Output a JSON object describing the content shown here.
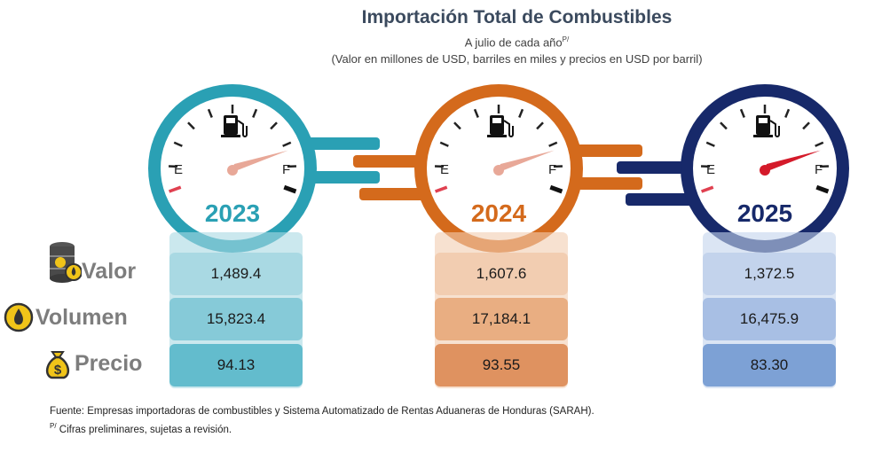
{
  "title": "Importación Total de Combustibles",
  "subtitle_line1": "A julio de cada año",
  "subtitle_sup": "P/",
  "subtitle_line2": "(Valor en millones de USD, barriles en miles y precios en USD por barril)",
  "gauge_labels": {
    "empty": "E",
    "full": "F"
  },
  "row_labels": [
    "Valor",
    "Volumen",
    "Precio"
  ],
  "chart_data": {
    "type": "table",
    "title": "Importación Total de Combustibles",
    "columns": [
      "2023",
      "2024",
      "2025"
    ],
    "rows": [
      {
        "name": "Valor",
        "values": [
          "1,489.4",
          "1,607.6",
          "1,372.5"
        ]
      },
      {
        "name": "Volumen",
        "values": [
          "15,823.4",
          "17,184.1",
          "16,475.9"
        ]
      },
      {
        "name": "Precio",
        "values": [
          "94.13",
          "93.55",
          "83.30"
        ]
      }
    ],
    "colors": {
      "2023": {
        "ring": "#2aa0b4",
        "cells": [
          "#a9d9e3",
          "#86cad8",
          "#63bccd"
        ]
      },
      "2024": {
        "ring": "#d46a1c",
        "cells": [
          "#f2cdb1",
          "#e9ae82",
          "#df9260"
        ]
      },
      "2025": {
        "ring": "#17296a",
        "cells": [
          "#c3d3ec",
          "#a8bfe4",
          "#7da1d5"
        ]
      }
    }
  },
  "source": "Fuente: Empresas importadoras de combustibles y Sistema Automatizado de Rentas Aduaneras de Honduras (SARAH).",
  "note_sup": "P/",
  "note": " Cifras preliminares, sujetas a revisión."
}
